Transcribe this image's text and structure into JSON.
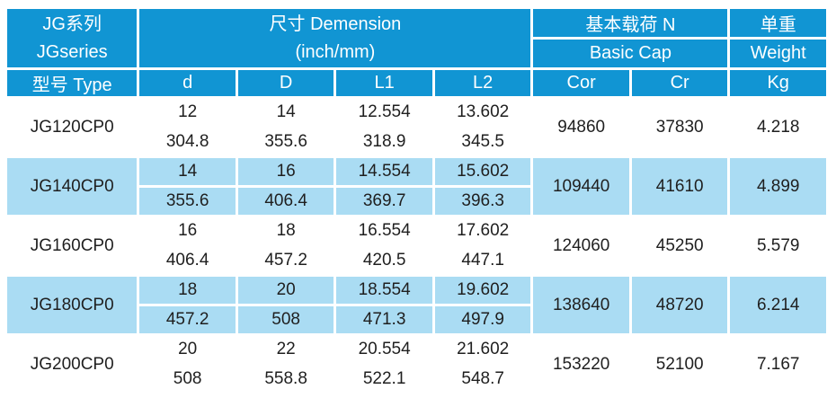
{
  "colors": {
    "header_blue": "#1195d3",
    "row_light_blue": "#aadcf3",
    "grid_white": "#ffffff",
    "data_text": "#1f1f1f"
  },
  "table": {
    "header": {
      "series_zh": "JG系列",
      "series_en": "JGseries",
      "dimension_zh": "尺寸 Demension",
      "dimension_en": "(inch/mm)",
      "load_zh": "基本载荷 N",
      "load_en": "Basic Cap",
      "weight_zh": "单重",
      "weight_en": "Weight",
      "model_col": "型号 Type",
      "cols": [
        "d",
        "D",
        "L1",
        "L2",
        "Cor",
        "Cr",
        "Kg"
      ]
    },
    "rows": [
      {
        "model": "JG120CP0",
        "d_inch": "12",
        "d_mm": "304.8",
        "D_inch": "14",
        "D_mm": "355.6",
        "L1_inch": "12.554",
        "L1_mm": "318.9",
        "L2_inch": "13.602",
        "L2_mm": "345.5",
        "cor": "94860",
        "cr": "37830",
        "kg": "4.218"
      },
      {
        "model": "JG140CP0",
        "d_inch": "14",
        "d_mm": "355.6",
        "D_inch": "16",
        "D_mm": "406.4",
        "L1_inch": "14.554",
        "L1_mm": "369.7",
        "L2_inch": "15.602",
        "L2_mm": "396.3",
        "cor": "109440",
        "cr": "41610",
        "kg": "4.899"
      },
      {
        "model": "JG160CP0",
        "d_inch": "16",
        "d_mm": "406.4",
        "D_inch": "18",
        "D_mm": "457.2",
        "L1_inch": "16.554",
        "L1_mm": "420.5",
        "L2_inch": "17.602",
        "L2_mm": "447.1",
        "cor": "124060",
        "cr": "45250",
        "kg": "5.579"
      },
      {
        "model": "JG180CP0",
        "d_inch": "18",
        "d_mm": "457.2",
        "D_inch": "20",
        "D_mm": "508",
        "L1_inch": "18.554",
        "L1_mm": "471.3",
        "L2_inch": "19.602",
        "L2_mm": "497.9",
        "cor": "138640",
        "cr": "48720",
        "kg": "6.214"
      },
      {
        "model": "JG200CP0",
        "d_inch": "20",
        "d_mm": "508",
        "D_inch": "22",
        "D_mm": "558.8",
        "L1_inch": "20.554",
        "L1_mm": "522.1",
        "L2_inch": "21.602",
        "L2_mm": "548.7",
        "cor": "153220",
        "cr": "52100",
        "kg": "7.167"
      }
    ]
  },
  "chart_data": {
    "type": "table",
    "title": "JG系列 JGseries 尺寸 Demension (inch/mm) 基本载荷 N Basic Cap 单重 Weight",
    "columns": [
      "型号 Type",
      "d (inch/mm)",
      "D (inch/mm)",
      "L1 (inch/mm)",
      "L2 (inch/mm)",
      "Cor (N)",
      "Cr (N)",
      "Kg"
    ],
    "rows": [
      [
        "JG120CP0",
        "12 / 304.8",
        "14 / 355.6",
        "12.554 / 318.9",
        "13.602 / 345.5",
        94860,
        37830,
        4.218
      ],
      [
        "JG140CP0",
        "14 / 355.6",
        "16 / 406.4",
        "14.554 / 369.7",
        "15.602 / 396.3",
        109440,
        41610,
        4.899
      ],
      [
        "JG160CP0",
        "16 / 406.4",
        "18 / 457.2",
        "16.554 / 420.5",
        "17.602 / 447.1",
        124060,
        45250,
        5.579
      ],
      [
        "JG180CP0",
        "18 / 457.2",
        "20 / 508",
        "18.554 / 471.3",
        "19.602 / 497.9",
        138640,
        48720,
        6.214
      ],
      [
        "JG200CP0",
        "20 / 508",
        "22 / 558.8",
        "20.554 / 522.1",
        "21.602 / 548.7",
        153220,
        52100,
        7.167
      ]
    ]
  }
}
